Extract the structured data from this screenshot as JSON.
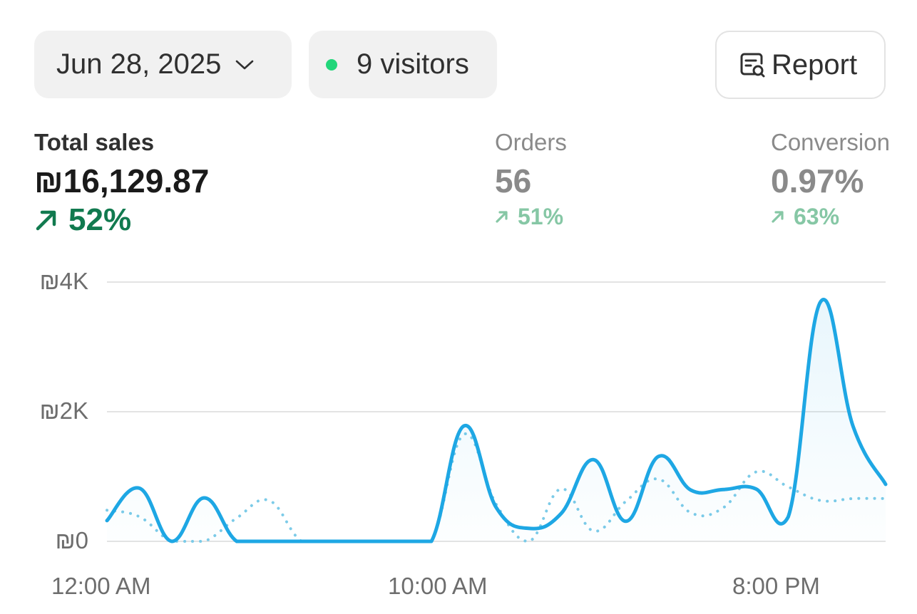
{
  "toolbar": {
    "date_label": "Jun 28, 2025",
    "visitors_label": "9 visitors",
    "report_label": "Report",
    "live_dot_color": "#22d67a"
  },
  "metrics": {
    "total_sales": {
      "label": "Total sales",
      "value": "₪16,129.87",
      "change": "52%",
      "trend": "up"
    },
    "orders": {
      "label": "Orders",
      "value": "56",
      "change": "51%",
      "trend": "up"
    },
    "conversion": {
      "label": "Conversion",
      "value": "0.97%",
      "change": "63%",
      "trend": "up"
    }
  },
  "chart_data": {
    "type": "line",
    "x_ticks": [
      "12:00 AM",
      "10:00 AM",
      "8:00 PM"
    ],
    "y_ticks": [
      "₪4K",
      "₪2K",
      "₪0"
    ],
    "ylim": [
      0,
      4000
    ],
    "grid": true,
    "colors": {
      "current": "#1ea7e4",
      "previous": "#7ccbe8"
    },
    "series": [
      {
        "style": "solid",
        "x": [
          0,
          1,
          2,
          3,
          4,
          5,
          6,
          7,
          8,
          9,
          10,
          11,
          12,
          13,
          14,
          15,
          16,
          17,
          18,
          19,
          20,
          21,
          22,
          23,
          24
        ],
        "values": [
          320,
          820,
          0,
          670,
          0,
          0,
          0,
          0,
          0,
          0,
          0,
          1780,
          520,
          200,
          430,
          1260,
          310,
          1310,
          790,
          800,
          810,
          380,
          3700,
          1770,
          880
        ]
      },
      {
        "style": "dotted",
        "x": [
          0,
          1,
          2,
          3,
          4,
          5,
          6,
          7,
          8,
          9,
          10,
          11,
          12,
          13,
          14,
          15,
          16,
          17,
          18,
          19,
          20,
          21,
          22,
          23,
          24
        ],
        "values": [
          480,
          380,
          0,
          0,
          360,
          630,
          0,
          0,
          0,
          0,
          0,
          1650,
          570,
          0,
          810,
          160,
          620,
          960,
          440,
          520,
          1070,
          840,
          630,
          660,
          660
        ]
      }
    ]
  }
}
